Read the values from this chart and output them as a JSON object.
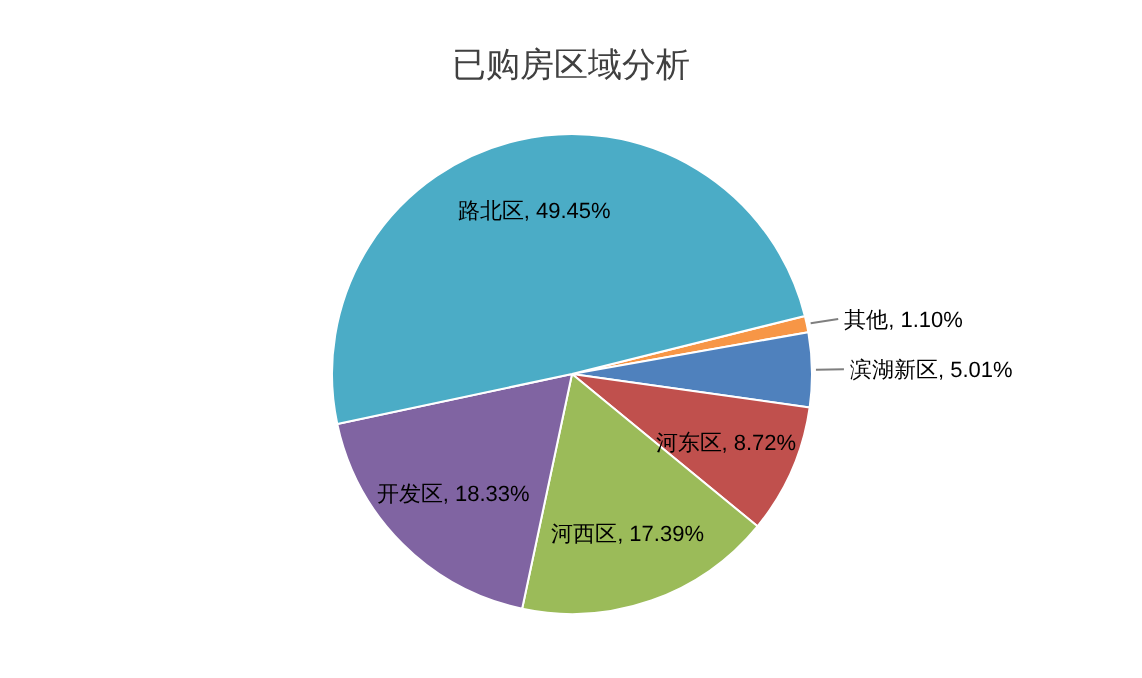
{
  "chart_data": {
    "type": "pie",
    "title": "已购房区域分析",
    "categories": [
      "其他",
      "滨湖新区",
      "河东区",
      "河西区",
      "开发区",
      "路北区"
    ],
    "values": [
      1.1,
      5.01,
      8.72,
      17.39,
      18.33,
      49.45
    ],
    "colors": [
      "#f79646",
      "#4f81bd",
      "#c0504d",
      "#9bbb59",
      "#8064a2",
      "#4bacc6"
    ],
    "value_labels": [
      "1.10%",
      "5.01%",
      "8.72%",
      "17.39%",
      "18.33%",
      "49.45%"
    ]
  }
}
